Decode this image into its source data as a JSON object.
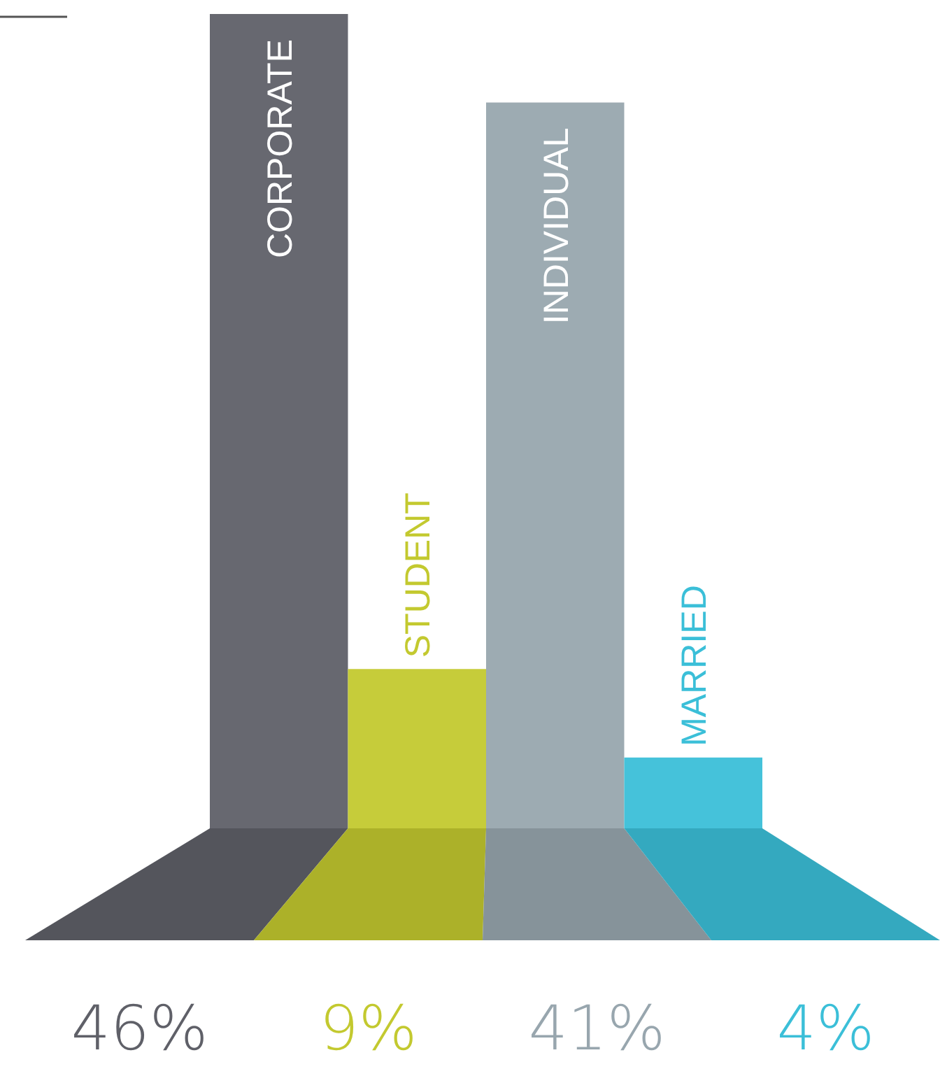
{
  "chart_data": {
    "type": "bar",
    "categories": [
      "CORPORATE",
      "STUDENT",
      "INDIVIDUAL",
      "MARRIED"
    ],
    "values": [
      46,
      9,
      41,
      4
    ],
    "colors": [
      "#5f6068",
      "#c3c92f",
      "#98a6ae",
      "#3bbfd8"
    ],
    "value_labels": [
      "46%",
      "9%",
      "41%",
      "4%"
    ]
  }
}
